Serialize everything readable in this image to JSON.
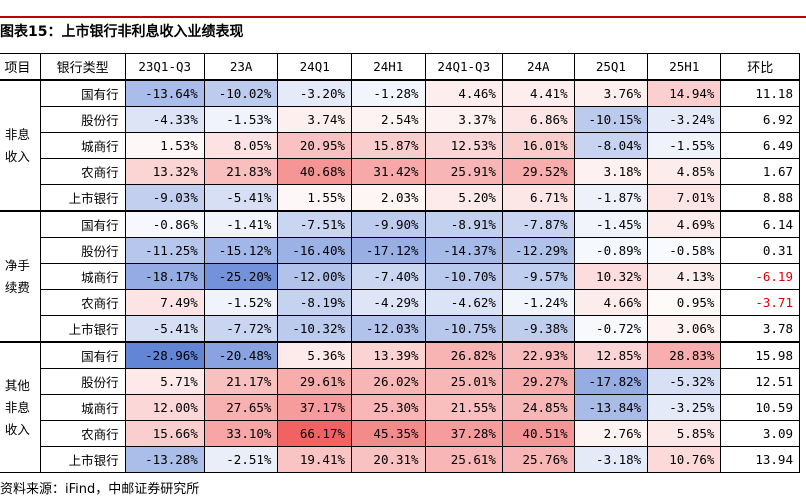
{
  "title": "图表15：上市银行非利息收入业绩表现",
  "source": "资料来源：iFind，中邮证券研究所",
  "headers": [
    "项目",
    "银行类型",
    "23Q1-Q3",
    "23A",
    "24Q1",
    "24H1",
    "24Q1-Q3",
    "24A",
    "25Q1",
    "25H1",
    "环比"
  ],
  "groups": [
    {
      "name": "非息收入",
      "rows": [
        {
          "bank": "国有行",
          "values": [
            "-13.64%",
            "-10.02%",
            "-3.20%",
            "-1.28%",
            "4.46%",
            "4.41%",
            "3.76%",
            "14.94%"
          ],
          "qoq": "11.18"
        },
        {
          "bank": "股份行",
          "values": [
            "-4.33%",
            "-1.53%",
            "3.74%",
            "2.54%",
            "3.37%",
            "6.86%",
            "-10.15%",
            "-3.24%"
          ],
          "qoq": "6.92"
        },
        {
          "bank": "城商行",
          "values": [
            "1.53%",
            "8.05%",
            "20.95%",
            "15.87%",
            "12.53%",
            "16.01%",
            "-8.04%",
            "-1.55%"
          ],
          "qoq": "6.49"
        },
        {
          "bank": "农商行",
          "values": [
            "13.32%",
            "21.83%",
            "40.68%",
            "31.42%",
            "25.91%",
            "29.52%",
            "3.18%",
            "4.85%"
          ],
          "qoq": "1.67"
        },
        {
          "bank": "上市银行",
          "values": [
            "-9.03%",
            "-5.41%",
            "1.55%",
            "2.03%",
            "5.20%",
            "6.71%",
            "-1.87%",
            "7.01%"
          ],
          "qoq": "8.88"
        }
      ]
    },
    {
      "name": "净手续费",
      "rows": [
        {
          "bank": "国有行",
          "values": [
            "-0.86%",
            "-1.41%",
            "-7.51%",
            "-9.90%",
            "-8.91%",
            "-7.87%",
            "-1.45%",
            "4.69%"
          ],
          "qoq": "6.14"
        },
        {
          "bank": "股份行",
          "values": [
            "-11.25%",
            "-15.12%",
            "-16.40%",
            "-17.12%",
            "-14.37%",
            "-12.29%",
            "-0.89%",
            "-0.58%"
          ],
          "qoq": "0.31"
        },
        {
          "bank": "城商行",
          "values": [
            "-18.17%",
            "-25.20%",
            "-12.00%",
            "-7.40%",
            "-10.70%",
            "-9.57%",
            "10.32%",
            "4.13%"
          ],
          "qoq": "-6.19"
        },
        {
          "bank": "农商行",
          "values": [
            "7.49%",
            "-1.52%",
            "-8.19%",
            "-4.29%",
            "-4.62%",
            "-1.24%",
            "4.66%",
            "0.95%"
          ],
          "qoq": "-3.71"
        },
        {
          "bank": "上市银行",
          "values": [
            "-5.41%",
            "-7.72%",
            "-10.32%",
            "-12.03%",
            "-10.75%",
            "-9.38%",
            "-0.72%",
            "3.06%"
          ],
          "qoq": "3.78"
        }
      ]
    },
    {
      "name": "其他非息收入",
      "rows": [
        {
          "bank": "国有行",
          "values": [
            "-28.96%",
            "-20.48%",
            "5.36%",
            "13.39%",
            "26.82%",
            "22.93%",
            "12.85%",
            "28.83%"
          ],
          "qoq": "15.98"
        },
        {
          "bank": "股份行",
          "values": [
            "5.71%",
            "21.17%",
            "29.61%",
            "26.02%",
            "25.01%",
            "29.27%",
            "-17.82%",
            "-5.32%"
          ],
          "qoq": "12.51"
        },
        {
          "bank": "城商行",
          "values": [
            "12.00%",
            "27.65%",
            "37.17%",
            "25.30%",
            "21.55%",
            "24.85%",
            "-13.84%",
            "-3.25%"
          ],
          "qoq": "10.59"
        },
        {
          "bank": "农商行",
          "values": [
            "15.66%",
            "33.10%",
            "66.17%",
            "45.35%",
            "37.28%",
            "40.51%",
            "2.76%",
            "5.85%"
          ],
          "qoq": "3.09"
        },
        {
          "bank": "上市银行",
          "values": [
            "-13.28%",
            "-2.51%",
            "19.41%",
            "20.31%",
            "25.61%",
            "25.76%",
            "-3.18%",
            "10.76%"
          ],
          "qoq": "13.94"
        }
      ]
    }
  ],
  "colors": {
    "title_rule": "#c00000",
    "negative_qoq_text": "#e00000",
    "heat_negative": "#5b7fd4",
    "heat_positive": "#f05a5a",
    "heat_neutral": "#ffffff"
  }
}
